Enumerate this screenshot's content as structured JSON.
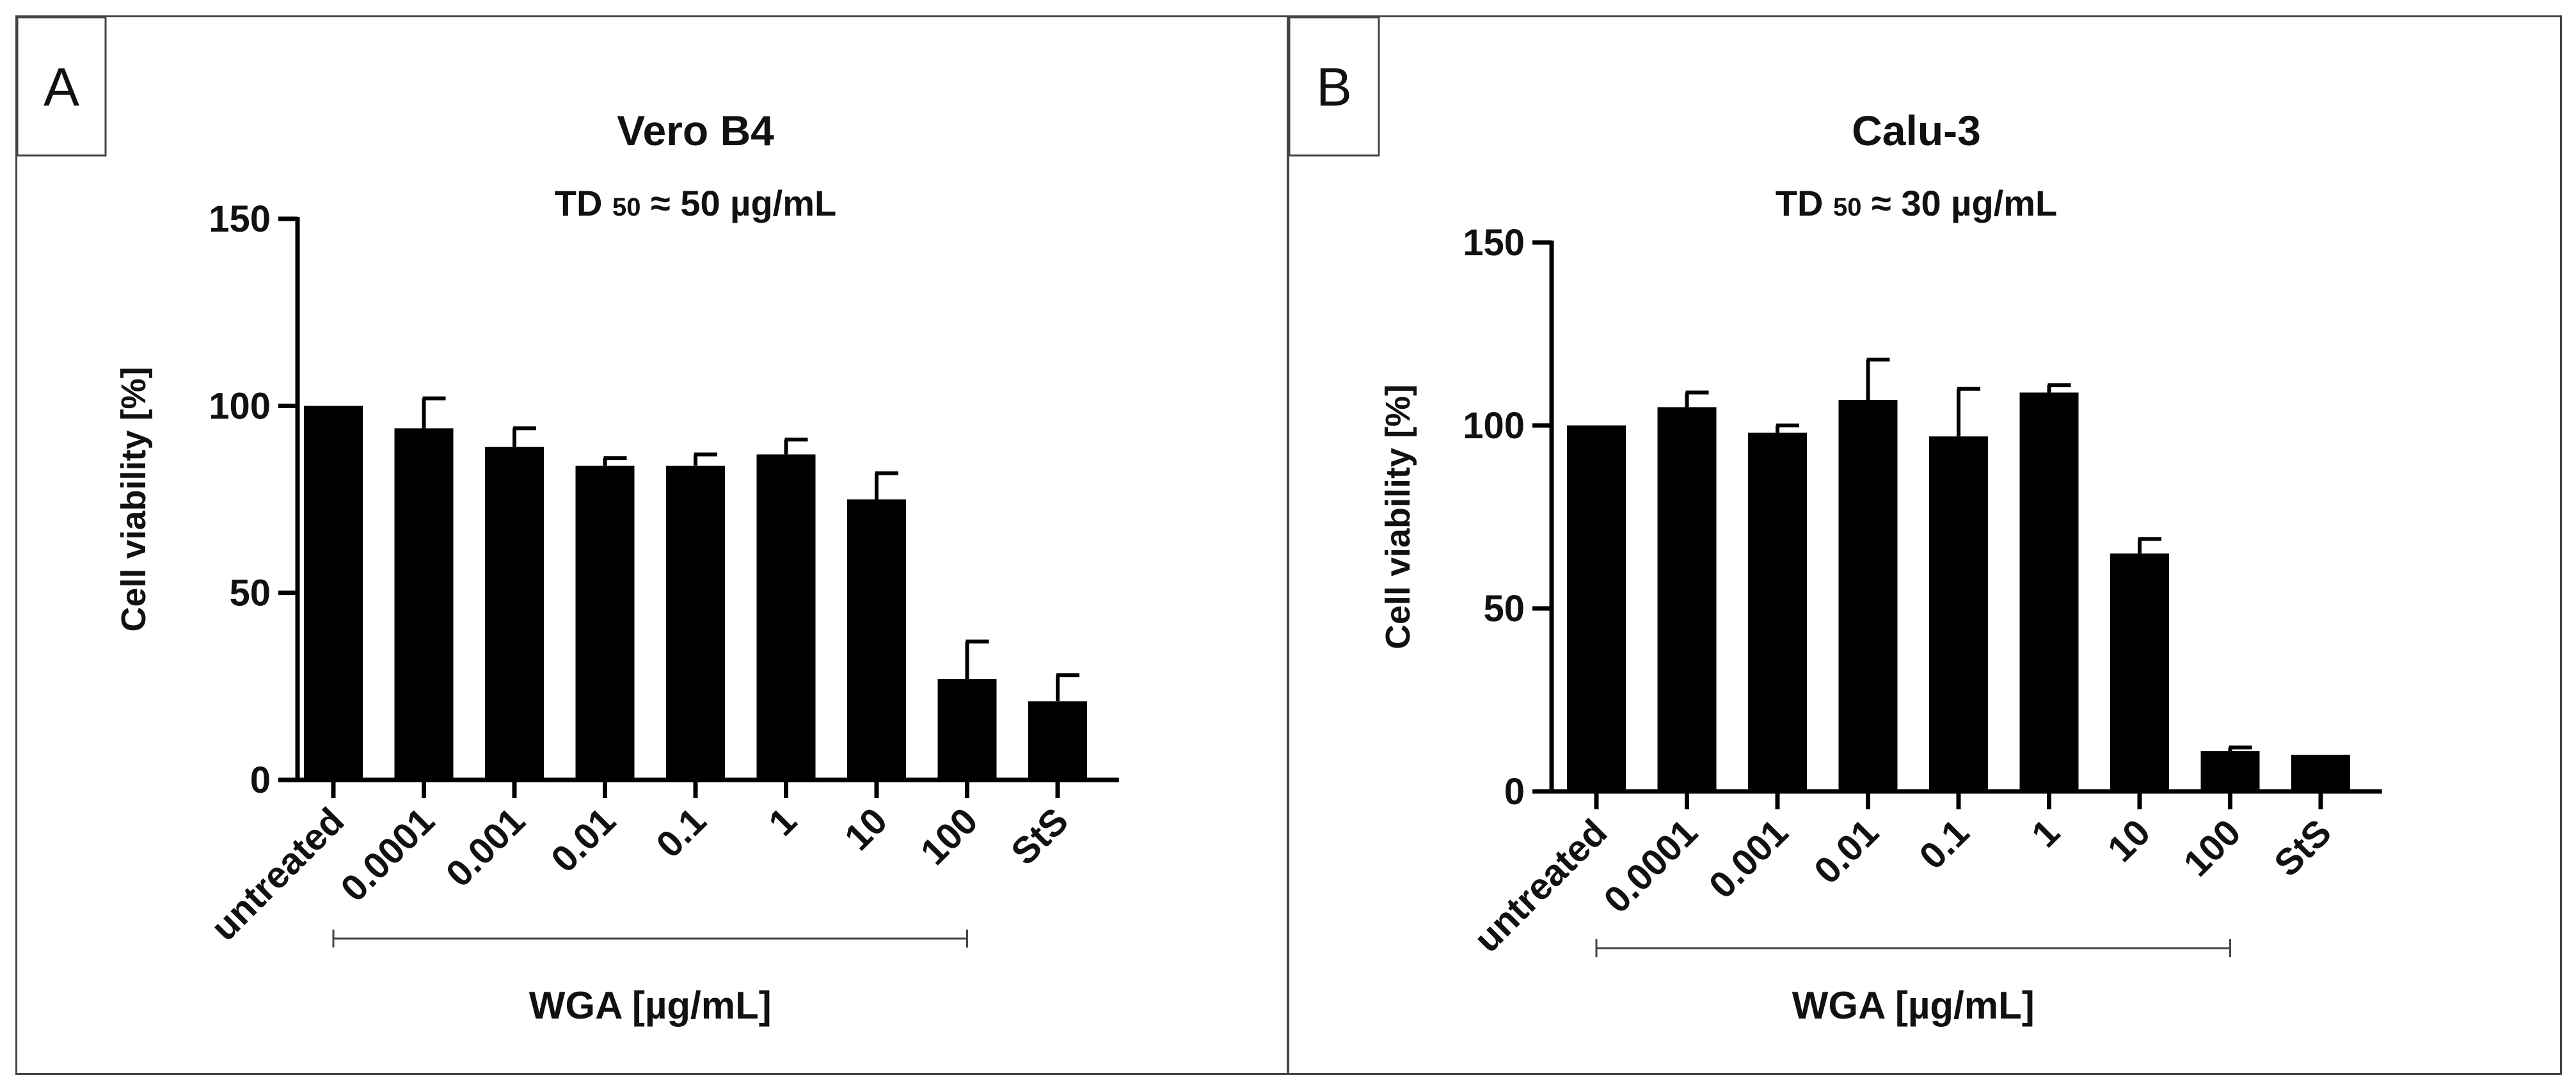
{
  "chart_data": [
    {
      "panel": "A",
      "type": "bar",
      "title": "Vero B4",
      "subtitle": {
        "prefix": "TD",
        "subscript": "50",
        "suffix": "≈ 50 µg/mL"
      },
      "categories": [
        "untreated",
        "0.0001",
        "0.001",
        "0.01",
        "0.1",
        "1",
        "10",
        "100",
        "StS"
      ],
      "values": [
        100,
        94,
        89,
        84,
        84,
        87,
        75,
        27,
        21
      ],
      "errors": [
        0,
        8,
        5,
        2,
        3,
        4,
        7,
        10,
        7
      ],
      "ylabel": "Cell viability [%]",
      "xlabel": "WGA [µg/mL]",
      "group_bracket": {
        "from": "untreated",
        "to": "100"
      },
      "ylim": [
        0,
        150
      ],
      "yticks": [
        "0",
        "50",
        "100",
        "150"
      ],
      "grid": false,
      "bar_color": "#000000"
    },
    {
      "panel": "B",
      "type": "bar",
      "title": "Calu-3",
      "subtitle": {
        "prefix": "TD",
        "subscript": "50",
        "suffix": "≈ 30 µg/mL"
      },
      "categories": [
        "untreated",
        "0.0001",
        "0.001",
        "0.01",
        "0.1",
        "1",
        "10",
        "100",
        "StS"
      ],
      "values": [
        100,
        105,
        98,
        107,
        97,
        109,
        65,
        11,
        10
      ],
      "errors": [
        0,
        4,
        2,
        11,
        13,
        2,
        4,
        1,
        0
      ],
      "ylabel": "Cell viability [%]",
      "xlabel": "WGA [µg/mL]",
      "group_bracket": {
        "from": "untreated",
        "to": "100"
      },
      "ylim": [
        0,
        150
      ],
      "yticks": [
        "0",
        "50",
        "100",
        "150"
      ],
      "grid": false,
      "bar_color": "#000000"
    }
  ]
}
